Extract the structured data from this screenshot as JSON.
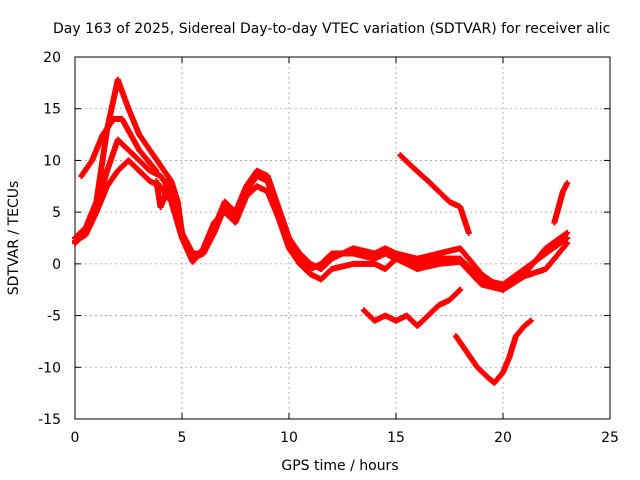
{
  "chart_data": {
    "type": "scatter",
    "title": "Day 163 of 2025, Sidereal Day-to-day VTEC variation (SDTVAR) for receiver alic",
    "xlabel": "GPS time / hours",
    "ylabel": "SDTVAR / TECUs",
    "xlim": [
      0,
      25
    ],
    "ylim": [
      -15,
      20
    ],
    "xticks": [
      0,
      5,
      10,
      15,
      20,
      25
    ],
    "yticks": [
      -15,
      -10,
      -5,
      0,
      5,
      10,
      15,
      20
    ],
    "grid": true,
    "marker": "+",
    "series": [
      {
        "name": "upper trace",
        "color": "#ff0000",
        "points": [
          [
            0,
            2.5
          ],
          [
            0.5,
            3.5
          ],
          [
            1,
            6
          ],
          [
            1.5,
            13
          ],
          [
            2,
            17.8
          ],
          [
            2.5,
            15
          ],
          [
            3,
            12.5
          ],
          [
            3.5,
            11
          ],
          [
            4,
            9.5
          ],
          [
            4.5,
            8
          ],
          [
            4.8,
            6
          ],
          [
            5,
            3
          ],
          [
            5.5,
            1
          ],
          [
            6,
            1
          ],
          [
            6.5,
            3
          ],
          [
            7,
            5.5
          ],
          [
            7.5,
            4.5
          ],
          [
            8,
            7
          ],
          [
            8.5,
            8.5
          ],
          [
            9,
            8
          ],
          [
            9.5,
            5
          ],
          [
            10,
            2
          ],
          [
            10.5,
            0.5
          ],
          [
            11,
            -0.5
          ],
          [
            11.5,
            0
          ],
          [
            12,
            1
          ],
          [
            13,
            1
          ],
          [
            14,
            0.5
          ],
          [
            14.5,
            1
          ],
          [
            15,
            0.5
          ],
          [
            16,
            0
          ],
          [
            17,
            0.5
          ],
          [
            18,
            0.5
          ],
          [
            19,
            -1.5
          ],
          [
            20,
            -2
          ],
          [
            21,
            -0.5
          ],
          [
            22,
            1
          ],
          [
            23,
            2.5
          ]
        ]
      },
      {
        "name": "middle trace",
        "color": "#ff0000",
        "points": [
          [
            0,
            2
          ],
          [
            0.5,
            3
          ],
          [
            1,
            5.5
          ],
          [
            1.5,
            9
          ],
          [
            2,
            12
          ],
          [
            2.5,
            11
          ],
          [
            3,
            10
          ],
          [
            3.5,
            9
          ],
          [
            4,
            8.5
          ],
          [
            4.5,
            7
          ],
          [
            5,
            3
          ],
          [
            5.5,
            0.5
          ],
          [
            6,
            1
          ],
          [
            6.5,
            3.5
          ],
          [
            7,
            6
          ],
          [
            7.5,
            5
          ],
          [
            8,
            7.5
          ],
          [
            8.5,
            9
          ],
          [
            9,
            8.5
          ],
          [
            9.5,
            5.5
          ],
          [
            10,
            2.5
          ],
          [
            10.5,
            1
          ],
          [
            11,
            0
          ],
          [
            11.5,
            -0.5
          ],
          [
            12,
            0.5
          ],
          [
            13,
            1.5
          ],
          [
            14,
            1
          ],
          [
            14.5,
            1.5
          ],
          [
            15,
            1
          ],
          [
            16,
            0.5
          ],
          [
            17,
            1
          ],
          [
            18,
            1.5
          ],
          [
            19,
            -1
          ],
          [
            20,
            -2.5
          ],
          [
            21,
            -1
          ],
          [
            22,
            1.5
          ],
          [
            23,
            3
          ]
        ]
      },
      {
        "name": "lower trace",
        "color": "#ff0000",
        "points": [
          [
            0,
            2.2
          ],
          [
            0.5,
            2.8
          ],
          [
            1,
            5
          ],
          [
            1.5,
            7.5
          ],
          [
            2,
            9
          ],
          [
            2.5,
            10
          ],
          [
            3,
            9
          ],
          [
            3.5,
            8
          ],
          [
            4,
            7.5
          ],
          [
            4.5,
            6
          ],
          [
            5,
            2.5
          ],
          [
            5.5,
            0.2
          ],
          [
            6,
            1.5
          ],
          [
            6.5,
            4
          ],
          [
            7,
            5
          ],
          [
            7.5,
            4
          ],
          [
            8,
            6.5
          ],
          [
            8.5,
            7.5
          ],
          [
            9,
            7
          ],
          [
            9.5,
            4.5
          ],
          [
            10,
            1.5
          ],
          [
            10.5,
            0
          ],
          [
            11,
            -1
          ],
          [
            11.5,
            -1.5
          ],
          [
            12,
            -0.5
          ],
          [
            13,
            0
          ],
          [
            14,
            0
          ],
          [
            14.5,
            -0.5
          ],
          [
            15,
            0.5
          ],
          [
            16,
            -0.5
          ],
          [
            17,
            0
          ],
          [
            18,
            0.2
          ],
          [
            19,
            -2
          ],
          [
            20,
            -2.5
          ],
          [
            21,
            -1.2
          ],
          [
            22,
            -0.5
          ],
          [
            23,
            2
          ]
        ]
      },
      {
        "name": "bump trace",
        "color": "#ff0000",
        "points": [
          [
            0.3,
            8.5
          ],
          [
            0.8,
            10
          ],
          [
            1.3,
            12.5
          ],
          [
            1.8,
            14
          ],
          [
            2.2,
            14
          ],
          [
            2.6,
            12.5
          ],
          [
            3,
            11
          ],
          [
            3.4,
            10
          ],
          [
            3.8,
            9
          ]
        ]
      },
      {
        "name": "hour 4 drop",
        "color": "#ff0000",
        "points": [
          [
            3.8,
            8
          ],
          [
            4,
            5.5
          ],
          [
            4.2,
            6.5
          ],
          [
            4.3,
            8
          ]
        ]
      },
      {
        "name": "afternoon decline",
        "color": "#ff0000",
        "points": [
          [
            15.2,
            10.5
          ],
          [
            15.7,
            9.5
          ],
          [
            16.5,
            8
          ],
          [
            17,
            7
          ],
          [
            17.5,
            6
          ],
          [
            18,
            5.5
          ],
          [
            18.4,
            3
          ]
        ]
      },
      {
        "name": "negative segment",
        "color": "#ff0000",
        "points": [
          [
            13.5,
            -4.5
          ],
          [
            14,
            -5.5
          ],
          [
            14.5,
            -5
          ],
          [
            15,
            -5.5
          ],
          [
            15.5,
            -5
          ],
          [
            16,
            -6
          ],
          [
            16.5,
            -5
          ],
          [
            17,
            -4
          ],
          [
            17.5,
            -3.5
          ],
          [
            18,
            -2.5
          ]
        ]
      },
      {
        "name": "trough segment",
        "color": "#ff0000",
        "points": [
          [
            17.8,
            -7
          ],
          [
            18.3,
            -8.5
          ],
          [
            18.8,
            -10
          ],
          [
            19.3,
            -11
          ],
          [
            19.6,
            -11.5
          ],
          [
            20,
            -10.5
          ],
          [
            20.3,
            -9
          ],
          [
            20.6,
            -7
          ],
          [
            21,
            -6
          ],
          [
            21.3,
            -5.5
          ]
        ]
      },
      {
        "name": "late rise",
        "color": "#ff0000",
        "points": [
          [
            22.4,
            4
          ],
          [
            22.6,
            5.5
          ],
          [
            22.8,
            7
          ],
          [
            23,
            7.8
          ]
        ]
      }
    ]
  }
}
